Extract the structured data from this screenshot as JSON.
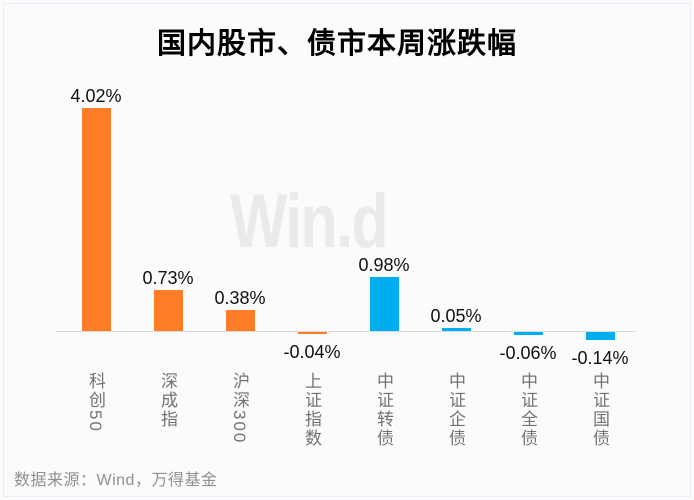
{
  "title": "国内股市、债市本周涨跌幅",
  "watermark": "Win.d",
  "source_note": "数据来源：Wind，万得基金",
  "colors": {
    "stock_bar": "#fd7e27",
    "bond_bar": "#00adee",
    "axis_line": "#d9d9d9",
    "value_label": "#111111",
    "category_label": "#737373",
    "source_text": "#909090",
    "watermark_text": "#e9eaec",
    "background": "#fafbfd"
  },
  "chart_data": {
    "type": "bar",
    "title": "国内股市、债市本周涨跌幅",
    "categories": [
      "科创50",
      "深成指",
      "沪深300",
      "上证指数",
      "中证转债",
      "中证企债",
      "中证全债",
      "中证国债"
    ],
    "values": [
      4.02,
      0.73,
      0.38,
      -0.04,
      0.98,
      0.05,
      -0.06,
      -0.14
    ],
    "value_labels": [
      "4.02%",
      "0.73%",
      "0.38%",
      "-0.04%",
      "0.98%",
      "0.05%",
      "-0.06%",
      "-0.14%"
    ],
    "bar_colors": [
      "#fd7e27",
      "#fd7e27",
      "#fd7e27",
      "#fd7e27",
      "#00adee",
      "#00adee",
      "#00adee",
      "#00adee"
    ],
    "xlabel": "",
    "ylabel": "",
    "ylim": [
      -0.2,
      4.2
    ],
    "grid": false,
    "legend": false,
    "annotations": [
      "数据来源：Wind，万得基金"
    ]
  }
}
